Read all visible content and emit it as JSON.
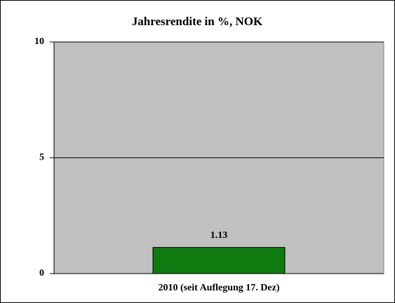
{
  "chart_data": {
    "type": "bar",
    "title": "Jahresrendite in %, NOK",
    "categories": [
      "2010 (seit Auflegung 17. Dez)"
    ],
    "values": [
      1.13
    ],
    "color": "#0f7a0f",
    "ylim": [
      0,
      10
    ],
    "yticks": [
      0,
      5,
      10
    ],
    "grid": true,
    "data_labels": true
  }
}
